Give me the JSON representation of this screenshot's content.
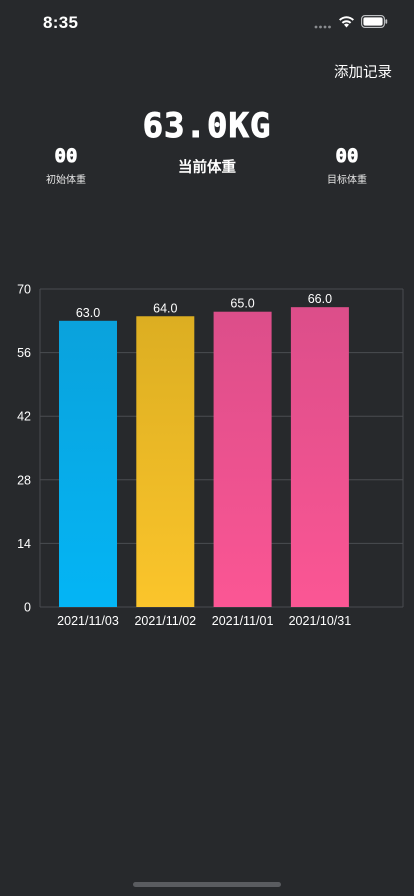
{
  "status_bar": {
    "time": "8:35"
  },
  "header": {
    "add_record_label": "添加记录"
  },
  "weight": {
    "current_value": "63.0KG",
    "current_label": "当前体重",
    "initial_value": "00",
    "initial_label": "初始体重",
    "target_value": "00",
    "target_label": "目标体重"
  },
  "colors": {
    "background": "#27292c",
    "bar_blue_top": "#0aa2dc",
    "bar_blue_bottom": "#04b5f5",
    "bar_yellow_top": "#dcae22",
    "bar_yellow_bottom": "#fbc52b",
    "bar_pink_top": "#dc4e8a",
    "bar_pink_bottom": "#fb5694",
    "grid": "#4a4c50"
  },
  "chart_data": {
    "type": "bar",
    "categories": [
      "2021/11/03",
      "2021/11/02",
      "2021/11/01",
      "2021/10/31"
    ],
    "values": [
      63.0,
      64.0,
      65.0,
      66.0
    ],
    "value_labels": [
      "63.0",
      "64.0",
      "65.0",
      "66.0"
    ],
    "bar_colors": [
      "blue",
      "yellow",
      "pink",
      "pink"
    ],
    "yticks": [
      0,
      14,
      28,
      42,
      56,
      70
    ],
    "ylim": [
      0,
      70
    ],
    "grid": true,
    "title": "",
    "xlabel": "",
    "ylabel": ""
  }
}
